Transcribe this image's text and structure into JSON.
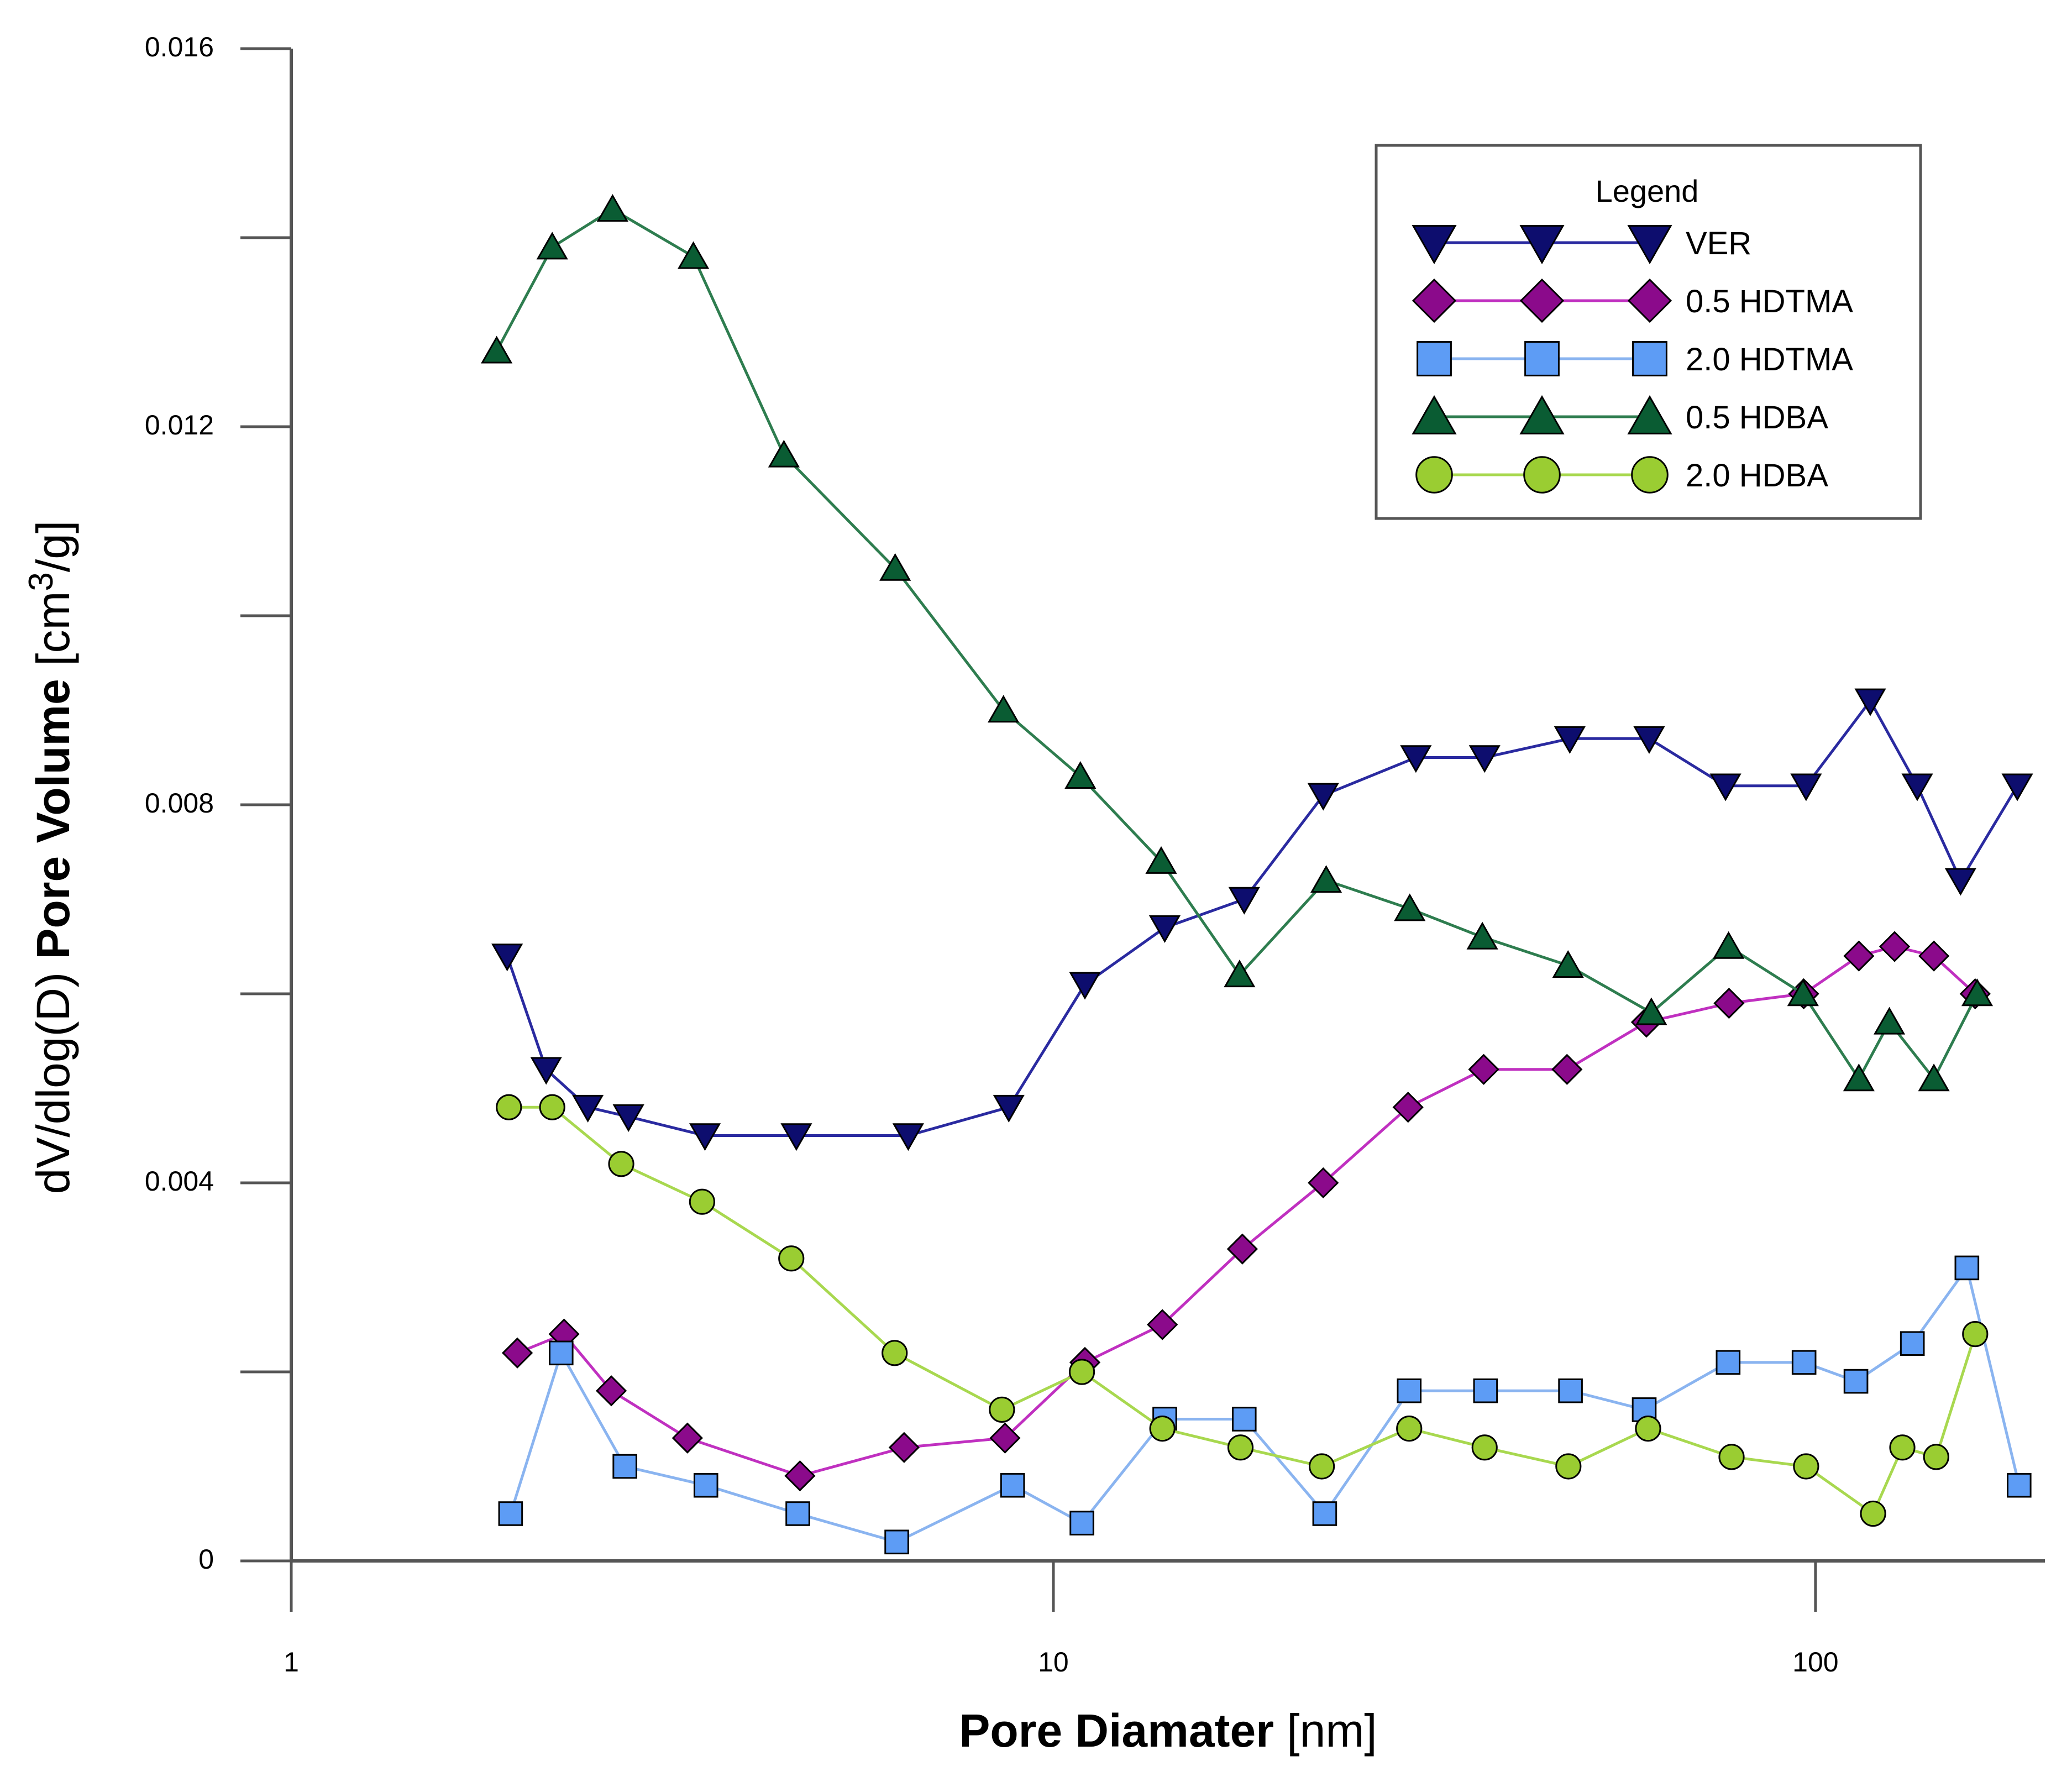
{
  "chart_data": {
    "type": "line",
    "title": "",
    "xlabel": {
      "bold": "Pore Diamater",
      "plain": " [nm]"
    },
    "ylabel": {
      "plain": "dV/dlog(D) ",
      "bold": "Pore Volume",
      "unit_before": " [cm",
      "unit_sup": "3",
      "unit_after": "/g]"
    },
    "x_scale": "log",
    "xlim": [
      1,
      200
    ],
    "ylim": [
      0,
      0.016
    ],
    "x_ticks": [
      1,
      10,
      100
    ],
    "x_tick_labels": [
      "1",
      "10",
      "100"
    ],
    "y_ticks": [
      0,
      0.002,
      0.004,
      0.006,
      0.008,
      0.01,
      0.012,
      0.014,
      0.016
    ],
    "y_tick_labels": [
      "0",
      "",
      "0.004",
      "",
      "0.008",
      "",
      "0.012",
      "",
      "0.016"
    ],
    "legend": {
      "title": "Legend",
      "position": "top-right"
    },
    "series": [
      {
        "name": "VER",
        "marker": "triangle-down",
        "color": "#0d0d6e",
        "line_color": "#2a2aa0",
        "x": [
          1.92,
          2.16,
          2.45,
          2.77,
          3.49,
          4.6,
          6.45,
          8.74,
          11.0,
          14.0,
          17.8,
          22.6,
          29.9,
          36.8,
          47.6,
          60.5,
          76.2,
          97.2,
          118,
          136,
          155,
          184
        ],
        "y": [
          0.0064,
          0.0052,
          0.0048,
          0.0047,
          0.0045,
          0.0045,
          0.0045,
          0.0048,
          0.0061,
          0.0067,
          0.007,
          0.0081,
          0.0085,
          0.0085,
          0.0087,
          0.0087,
          0.0082,
          0.0082,
          0.0091,
          0.0082,
          0.0072,
          0.0082
        ]
      },
      {
        "name": "0.5 HDTMA",
        "marker": "diamond",
        "color": "#8b0a8b",
        "line_color": "#c030c0",
        "x": [
          1.98,
          2.28,
          2.63,
          3.31,
          4.65,
          6.37,
          8.64,
          11.0,
          13.9,
          17.7,
          22.6,
          29.2,
          36.7,
          47.2,
          60.0,
          77.0,
          96.5,
          114,
          127,
          143,
          162
        ],
        "y": [
          0.0022,
          0.0024,
          0.0018,
          0.0013,
          0.0009,
          0.0012,
          0.0013,
          0.0021,
          0.0025,
          0.0033,
          0.004,
          0.0048,
          0.0052,
          0.0052,
          0.0057,
          0.0059,
          0.006,
          0.0064,
          0.0065,
          0.0064,
          0.006
        ]
      },
      {
        "name": "2.0 HDTMA",
        "marker": "square",
        "color": "#5d9cf5",
        "line_color": "#8ab4f0",
        "x": [
          1.94,
          2.26,
          2.74,
          3.5,
          4.62,
          6.23,
          8.84,
          10.9,
          14.0,
          17.8,
          22.7,
          29.3,
          36.9,
          47.7,
          59.6,
          76.8,
          96.6,
          113,
          134,
          158,
          185
        ],
        "y": [
          0.0005,
          0.0022,
          0.001,
          0.0008,
          0.0005,
          0.0002,
          0.0008,
          0.0004,
          0.0015,
          0.0015,
          0.0005,
          0.0018,
          0.0018,
          0.0018,
          0.0016,
          0.0021,
          0.0021,
          0.0019,
          0.0023,
          0.0031,
          0.0008
        ]
      },
      {
        "name": "0.5 HDBA",
        "marker": "triangle-up",
        "color": "#0a5c33",
        "line_color": "#2e7d4f",
        "x": [
          1.86,
          2.2,
          2.64,
          3.37,
          4.43,
          6.2,
          8.6,
          10.85,
          13.85,
          17.55,
          22.8,
          29.35,
          36.55,
          47.35,
          60.9,
          76.9,
          96.3,
          114,
          125,
          143,
          163
        ],
        "y": [
          0.0128,
          0.0139,
          0.0143,
          0.0138,
          0.0117,
          0.0105,
          0.009,
          0.0083,
          0.0074,
          0.0062,
          0.0072,
          0.0069,
          0.0066,
          0.0063,
          0.0058,
          0.0065,
          0.006,
          0.0051,
          0.0057,
          0.0051,
          0.006
        ]
      },
      {
        "name": "2.0 HDBA",
        "marker": "circle",
        "color": "#9acd32",
        "line_color": "#a8d84f",
        "x": [
          1.93,
          2.2,
          2.71,
          3.46,
          4.53,
          6.19,
          8.56,
          10.9,
          13.9,
          17.6,
          22.5,
          29.3,
          36.8,
          47.4,
          60.3,
          77.6,
          97.2,
          119,
          130,
          144,
          162
        ],
        "y": [
          0.0048,
          0.0048,
          0.0042,
          0.0038,
          0.0032,
          0.0022,
          0.0016,
          0.002,
          0.0014,
          0.0012,
          0.001,
          0.0014,
          0.0012,
          0.001,
          0.0014,
          0.0011,
          0.001,
          0.0005,
          0.0012,
          0.0011,
          0.0024
        ]
      }
    ]
  }
}
